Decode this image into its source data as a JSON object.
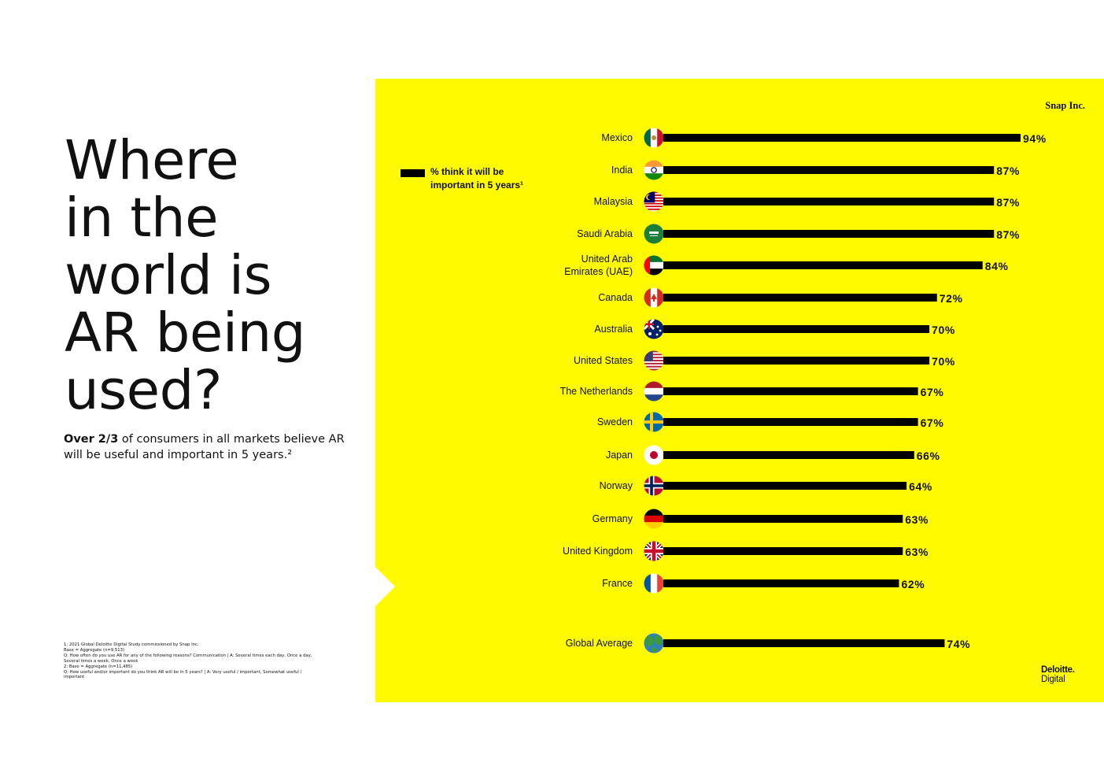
{
  "headline": [
    "Where",
    "in the",
    "world is",
    "AR being",
    "used?"
  ],
  "subtitle": {
    "bold": "Over 2/3",
    "rest": " of consumers in all markets believe AR will be useful and important in 5 years.²"
  },
  "footnotes": [
    "1: 2021 Global Deloitte Digital Study commissioned by Snap Inc.",
    "Base = Aggregate (n=9,513)",
    "Q: How often do you use AR for any of the following reasons? Communication | A: Several times each day, Once a day, Several times a week, Once a week",
    "2: Base = Aggregate (n=11,485)",
    "Q: How useful and/or important do you think AR will be in 5 years? | A: Very useful / important, Somewhat useful / important"
  ],
  "brands": {
    "snap": "Snap Inc.",
    "deloitte_line1": "Deloitte.",
    "deloitte_line2": "Digital"
  },
  "colors": {
    "panel": "#FFFA00",
    "bar": "#000000",
    "text": "#111111"
  },
  "chart_data": {
    "type": "bar",
    "orientation": "horizontal",
    "legend": "% think it will be important in 5 years¹",
    "value_suffix": "%",
    "categories": [
      "Mexico",
      "India",
      "Malaysia",
      "Saudi Arabia",
      "United Arab Emirates (UAE)",
      "Canada",
      "Australia",
      "United States",
      "The Netherlands",
      "Sweden",
      "Japan",
      "Norway",
      "Germany",
      "United Kingdom",
      "France"
    ],
    "values": [
      94,
      87,
      87,
      87,
      84,
      72,
      70,
      70,
      67,
      67,
      66,
      64,
      63,
      63,
      62
    ],
    "flag_icons": [
      "mexico-flag-icon",
      "india-flag-icon",
      "malaysia-flag-icon",
      "saudi-arabia-flag-icon",
      "uae-flag-icon",
      "canada-flag-icon",
      "australia-flag-icon",
      "usa-flag-icon",
      "netherlands-flag-icon",
      "sweden-flag-icon",
      "japan-flag-icon",
      "norway-flag-icon",
      "germany-flag-icon",
      "uk-flag-icon",
      "france-flag-icon"
    ],
    "average": {
      "label": "Global Average",
      "value": 74,
      "icon": "globe-icon"
    },
    "xlim": [
      0,
      100
    ],
    "grid": false
  }
}
